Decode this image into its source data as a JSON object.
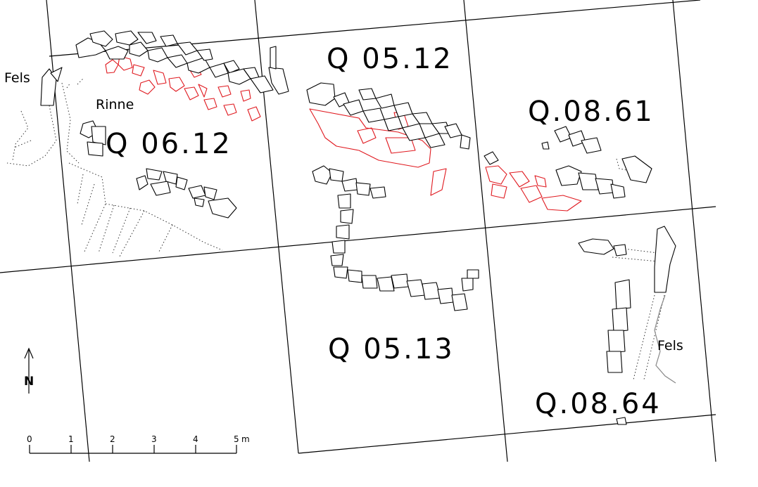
{
  "labels": {
    "fels_left": "Fels",
    "fels_right": "Fels",
    "rinne": "Rinne"
  },
  "squares": [
    {
      "id": "q0612",
      "label": "Q 06.12"
    },
    {
      "id": "q0512",
      "label": "Q 05.12"
    },
    {
      "id": "q0861",
      "label": "Q.08.61"
    },
    {
      "id": "q0513",
      "label": "Q 05.13"
    },
    {
      "id": "q0864",
      "label": "Q.08.64"
    }
  ],
  "north_arrow": {
    "letter": "N"
  },
  "scale_bar": {
    "ticks": [
      "0",
      "1",
      "2",
      "3",
      "4",
      "5"
    ],
    "unit": "m"
  },
  "colors": {
    "lines": "#000000",
    "highlight": "#e0191f",
    "rock_outline": "#888888"
  }
}
